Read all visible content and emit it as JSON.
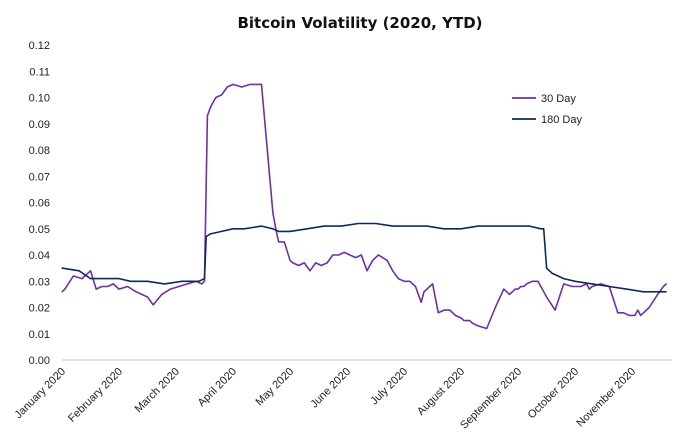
{
  "chart_data": {
    "type": "line",
    "title": "Bitcoin Volatility (2020, YTD)",
    "xlabel": "",
    "ylabel": "",
    "ylim": [
      0,
      0.12
    ],
    "yticks": [
      "0.00",
      "0.01",
      "0.02",
      "0.03",
      "0.04",
      "0.05",
      "0.06",
      "0.07",
      "0.08",
      "0.09",
      "0.10",
      "0.11",
      "0.12"
    ],
    "xticks": [
      "January 2020",
      "February 2020",
      "March 2020",
      "April 2020",
      "May 2020",
      "June 2020",
      "July 2020",
      "August 2020",
      "September 2020",
      "October 2020",
      "November 2020"
    ],
    "xlim": [
      0,
      10.7
    ],
    "grid": false,
    "legend_position": "top-right",
    "series": [
      {
        "name": "30 Day",
        "color": "#7030a0",
        "x": [
          0,
          0.05,
          0.2,
          0.35,
          0.5,
          0.6,
          0.7,
          0.8,
          0.9,
          1.0,
          1.15,
          1.3,
          1.5,
          1.6,
          1.75,
          1.9,
          2.05,
          2.2,
          2.35,
          2.45,
          2.5,
          2.55,
          2.6,
          2.62,
          2.7,
          2.8,
          2.9,
          3.0,
          3.15,
          3.3,
          3.5,
          3.7,
          3.75,
          3.8,
          3.9,
          4.0,
          4.05,
          4.15,
          4.25,
          4.35,
          4.45,
          4.55,
          4.65,
          4.75,
          4.85,
          4.95,
          5.05,
          5.15,
          5.25,
          5.35,
          5.45,
          5.55,
          5.7,
          5.8,
          5.9,
          6.0,
          6.1,
          6.2,
          6.25,
          6.3,
          6.35,
          6.5,
          6.6,
          6.7,
          6.8,
          6.9,
          7.0,
          7.05,
          7.1,
          7.15,
          7.2,
          7.3,
          7.45,
          7.6,
          7.75,
          7.85,
          7.95,
          8.0,
          8.05,
          8.1,
          8.15,
          8.25,
          8.35,
          8.5,
          8.65,
          8.8,
          8.95,
          9.1,
          9.2,
          9.25,
          9.3,
          9.45,
          9.6,
          9.75,
          9.85,
          9.95,
          10.05,
          10.1,
          10.15,
          10.2,
          10.3,
          10.45,
          10.55,
          10.6
        ],
        "values": [
          0.026,
          0.027,
          0.032,
          0.031,
          0.034,
          0.027,
          0.028,
          0.028,
          0.029,
          0.027,
          0.028,
          0.026,
          0.024,
          0.021,
          0.025,
          0.027,
          0.028,
          0.029,
          0.03,
          0.029,
          0.03,
          0.093,
          0.096,
          0.097,
          0.1,
          0.101,
          0.104,
          0.105,
          0.104,
          0.105,
          0.105,
          0.056,
          0.05,
          0.045,
          0.045,
          0.038,
          0.037,
          0.036,
          0.037,
          0.034,
          0.037,
          0.036,
          0.037,
          0.04,
          0.04,
          0.041,
          0.04,
          0.039,
          0.04,
          0.034,
          0.038,
          0.04,
          0.038,
          0.034,
          0.031,
          0.03,
          0.03,
          0.028,
          0.025,
          0.022,
          0.026,
          0.029,
          0.018,
          0.019,
          0.019,
          0.017,
          0.016,
          0.015,
          0.015,
          0.015,
          0.014,
          0.013,
          0.012,
          0.02,
          0.027,
          0.025,
          0.027,
          0.027,
          0.028,
          0.028,
          0.029,
          0.03,
          0.03,
          0.024,
          0.019,
          0.029,
          0.028,
          0.028,
          0.029,
          0.027,
          0.028,
          0.029,
          0.028,
          0.018,
          0.018,
          0.017,
          0.017,
          0.019,
          0.017,
          0.018,
          0.02,
          0.025,
          0.028,
          0.029
        ]
      },
      {
        "name": "180 Day",
        "color": "#0e2a5c",
        "x": [
          0,
          0.3,
          0.5,
          0.6,
          0.8,
          1.0,
          1.2,
          1.5,
          1.8,
          2.1,
          2.4,
          2.5,
          2.53,
          2.6,
          2.8,
          3.0,
          3.2,
          3.5,
          3.7,
          3.8,
          4.0,
          4.3,
          4.6,
          4.9,
          5.2,
          5.5,
          5.8,
          6.1,
          6.4,
          6.7,
          7.0,
          7.3,
          7.6,
          7.9,
          8.2,
          8.4,
          8.45,
          8.5,
          8.55,
          8.6,
          8.8,
          9.0,
          9.3,
          9.6,
          9.9,
          10.2,
          10.4,
          10.6
        ],
        "values": [
          0.035,
          0.034,
          0.031,
          0.031,
          0.031,
          0.031,
          0.03,
          0.03,
          0.029,
          0.03,
          0.03,
          0.031,
          0.047,
          0.048,
          0.049,
          0.05,
          0.05,
          0.051,
          0.05,
          0.049,
          0.049,
          0.05,
          0.051,
          0.051,
          0.052,
          0.052,
          0.051,
          0.051,
          0.051,
          0.05,
          0.05,
          0.051,
          0.051,
          0.051,
          0.051,
          0.05,
          0.05,
          0.035,
          0.034,
          0.033,
          0.031,
          0.03,
          0.029,
          0.028,
          0.027,
          0.026,
          0.026,
          0.026
        ]
      }
    ]
  }
}
